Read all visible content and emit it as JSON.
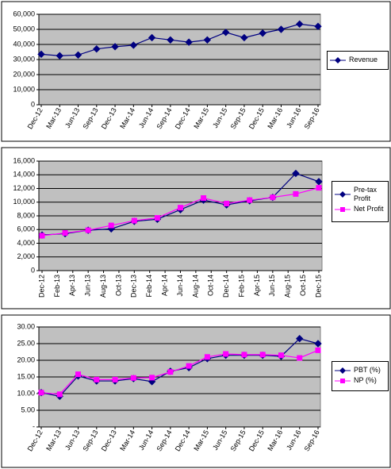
{
  "chart_data": [
    {
      "type": "line",
      "categories": [
        "Dec-12",
        "Mar-13",
        "Jun-13",
        "Sep-13",
        "Dec-13",
        "Mar-14",
        "Jun-14",
        "Sep-14",
        "Dec-14",
        "Mar-15",
        "Jun-15",
        "Sep-15",
        "Dec-15",
        "Mar-16",
        "Jun-16",
        "Sep-16"
      ],
      "series": [
        {
          "name": "Revenue",
          "color": "#000080",
          "marker": "diamond",
          "values": [
            33500,
            32500,
            33000,
            37000,
            38500,
            39500,
            44500,
            43000,
            41500,
            43000,
            48000,
            44500,
            47500,
            50000,
            53500,
            52000
          ]
        }
      ],
      "ylim": [
        0,
        60000
      ],
      "yticks": [
        0,
        {
          "value": 10000,
          "label": "10,000"
        },
        {
          "value": 20000,
          "label": "20,000"
        },
        {
          "value": 30000,
          "label": "30,000"
        },
        {
          "value": 40000,
          "label": "40,000"
        },
        {
          "value": 50000,
          "label": "50,000"
        },
        {
          "value": 60000,
          "label": "60,000"
        }
      ],
      "grid": true,
      "legend": "right"
    },
    {
      "type": "line",
      "xticks": [
        "Dec-12",
        "Feb-13",
        "Apr-13",
        "Jun-13",
        "Aug-13",
        "Oct-13",
        "Dec-13",
        "Feb-14",
        "Apr-14",
        "Jun-14",
        "Aug-14",
        "Oct-14",
        "Dec-14",
        "Feb-15",
        "Apr-15",
        "Jun-15",
        "Aug-15",
        "Oct-15",
        "Dec-15"
      ],
      "series": [
        {
          "name": "Pre-tax Profit",
          "color": "#000080",
          "marker": "diamond",
          "x": [
            "Dec-12",
            "Mar-13",
            "Jun-13",
            "Sep-13",
            "Dec-13",
            "Mar-14",
            "Jun-14",
            "Sep-14",
            "Dec-14",
            "Mar-15",
            "Jun-15",
            "Sep-15",
            "Dec-15"
          ],
          "values": [
            5200,
            5400,
            5900,
            6100,
            7200,
            7500,
            8900,
            10300,
            9600,
            10200,
            10700,
            14200,
            13000
          ]
        },
        {
          "name": "Net Profit",
          "color": "#ff00ff",
          "marker": "square",
          "x": [
            "Dec-12",
            "Mar-13",
            "Jun-13",
            "Sep-13",
            "Dec-13",
            "Mar-14",
            "Jun-14",
            "Sep-14",
            "Dec-14",
            "Mar-15",
            "Jun-15",
            "Sep-15",
            "Dec-15"
          ],
          "values": [
            5100,
            5500,
            5900,
            6600,
            7300,
            7700,
            9200,
            10600,
            9800,
            10300,
            10700,
            11200,
            12100
          ]
        }
      ],
      "ylim": [
        0,
        16000
      ],
      "yticks": [
        0,
        {
          "value": 2000,
          "label": "2,000"
        },
        {
          "value": 4000,
          "label": "4,000"
        },
        {
          "value": 6000,
          "label": "6,000"
        },
        {
          "value": 8000,
          "label": "8,000"
        },
        {
          "value": 10000,
          "label": "10,000"
        },
        {
          "value": 12000,
          "label": "12,000"
        },
        {
          "value": 14000,
          "label": "14,000"
        },
        {
          "value": 16000,
          "label": "16,000"
        }
      ],
      "grid": true,
      "legend": "right"
    },
    {
      "type": "line",
      "categories": [
        "Dec-12",
        "Mar-13",
        "Jun-13",
        "Sep-13",
        "Dec-13",
        "Mar-14",
        "Jun-14",
        "Sep-14",
        "Dec-14",
        "Mar-15",
        "Jun-15",
        "Sep-15",
        "Dec-15",
        "Mar-16",
        "Jun-16",
        "Sep-16"
      ],
      "series": [
        {
          "name": "PBT (%)",
          "color": "#000080",
          "marker": "diamond",
          "values": [
            10.3,
            9.2,
            15.3,
            13.8,
            13.8,
            14.5,
            13.6,
            16.7,
            17.8,
            20.5,
            21.5,
            21.5,
            21.5,
            21.2,
            26.5,
            25.0
          ]
        },
        {
          "name": "NP (%)",
          "color": "#ff00ff",
          "marker": "square",
          "values": [
            10.3,
            9.8,
            15.8,
            14.2,
            14.2,
            14.7,
            14.8,
            16.5,
            18.3,
            21.0,
            21.9,
            21.7,
            21.7,
            21.5,
            20.7,
            23.0
          ]
        }
      ],
      "ylim": [
        0,
        30
      ],
      "yticks": [
        {
          "value": 0,
          "label": "-"
        },
        {
          "value": 5,
          "label": "5.00"
        },
        {
          "value": 10,
          "label": "10.00"
        },
        {
          "value": 15,
          "label": "15.00"
        },
        {
          "value": 20,
          "label": "20.00"
        },
        {
          "value": 25,
          "label": "25.00"
        },
        {
          "value": 30,
          "label": "30.00"
        }
      ],
      "grid": true,
      "legend": "right"
    }
  ]
}
